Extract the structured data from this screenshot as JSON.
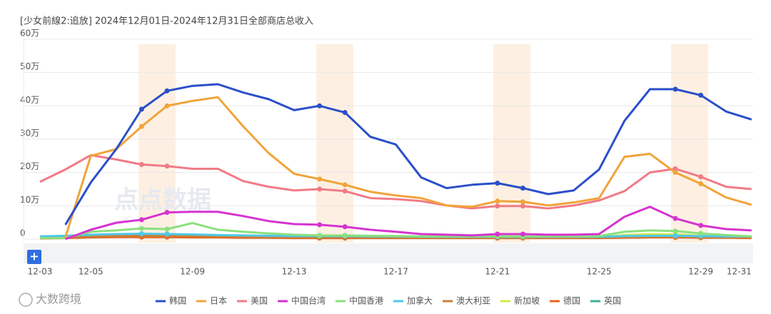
{
  "chart_data": {
    "type": "line",
    "title": "[少女前線2:追放] 2024年12月01日-2024年12月31日全部商店总收入",
    "watermark": "点点数据",
    "brand": "大数跨境",
    "button": "+",
    "categories": [
      "12-03",
      null,
      "12-05",
      null,
      null,
      null,
      "12-09",
      null,
      null,
      null,
      "12-13",
      null,
      null,
      null,
      "12-17",
      null,
      null,
      null,
      "12-21",
      null,
      null,
      null,
      "12-25",
      null,
      null,
      null,
      "12-29",
      null,
      "12-31"
    ],
    "ylim": [
      0,
      60
    ],
    "yticks": [
      {
        "value": 0,
        "label": "0"
      },
      {
        "value": 10,
        "label": "10万"
      },
      {
        "value": 20,
        "label": "20万"
      },
      {
        "value": 30,
        "label": "30万"
      },
      {
        "value": 40,
        "label": "40万"
      },
      {
        "value": 50,
        "label": "50万"
      },
      {
        "value": 60,
        "label": "60万"
      }
    ],
    "grid": true,
    "legend": "bottom",
    "series": [
      {
        "name": "韩国",
        "color": "#2b4fc9",
        "values": [
          null,
          4.3,
          17,
          27,
          39,
          44.5,
          46,
          46.5,
          44,
          42,
          38.7,
          40,
          38,
          30.7,
          28.4,
          18.5,
          15.3,
          16.3,
          16.8,
          15.3,
          13.5,
          14.6,
          20.9,
          35.5,
          45,
          45,
          43.2,
          38.3,
          35.9
        ]
      },
      {
        "name": "日本",
        "color": "#f0a43a",
        "values": [
          null,
          0.5,
          25,
          27,
          33.8,
          40,
          41.5,
          42.6,
          33.8,
          25.8,
          19.6,
          18,
          16.3,
          14.2,
          13.1,
          12.3,
          10.1,
          9.7,
          11.4,
          11.2,
          10.1,
          11,
          12.3,
          24.7,
          25.6,
          20,
          16.6,
          12.5,
          10.3
        ]
      },
      {
        "name": "美国",
        "color": "#f07b86",
        "values": [
          17.2,
          20.9,
          25.2,
          23.9,
          22.4,
          21.9,
          21.1,
          21.1,
          17.4,
          15.7,
          14.6,
          15,
          14.4,
          12.3,
          12,
          11.4,
          10.1,
          9.2,
          9.9,
          9.9,
          9.2,
          10.1,
          11.6,
          14.4,
          20,
          21.1,
          18.7,
          15.7,
          15
        ]
      },
      {
        "name": "中国台湾",
        "color": "#d633d0",
        "values": [
          null,
          0,
          2.8,
          4.9,
          5.8,
          8,
          8.2,
          8.2,
          6.9,
          5.4,
          4.5,
          4.3,
          3.7,
          2.8,
          2.2,
          1.5,
          1.3,
          1.1,
          1.5,
          1.5,
          1.3,
          1.3,
          1.5,
          6.7,
          9.7,
          6.2,
          4.1,
          3,
          2.6
        ]
      },
      {
        "name": "中国香港",
        "color": "#8be07d",
        "values": [
          0.3,
          0.3,
          2.2,
          2.6,
          3.2,
          3,
          4.8,
          2.8,
          2.2,
          1.7,
          1.3,
          1.1,
          1.1,
          1,
          0.9,
          0.8,
          0.8,
          0.8,
          0.8,
          0.8,
          0.8,
          0.8,
          0.9,
          2.2,
          2.6,
          2.4,
          1.7,
          1.2,
          0.8
        ]
      },
      {
        "name": "加拿大",
        "color": "#4fc9e8",
        "values": [
          0.8,
          1,
          1.3,
          1.5,
          1.6,
          1.5,
          1.4,
          1.2,
          1.1,
          1,
          0.9,
          0.9,
          0.9,
          0.8,
          0.8,
          0.7,
          0.7,
          0.7,
          0.7,
          0.7,
          0.7,
          0.7,
          0.7,
          0.9,
          1,
          1,
          0.9,
          0.8,
          0.8
        ]
      },
      {
        "name": "澳大利亚",
        "color": "#c8803a",
        "values": [
          0.4,
          0.5,
          0.8,
          0.9,
          1,
          1,
          0.9,
          0.8,
          0.7,
          0.6,
          0.5,
          0.5,
          0.5,
          0.4,
          0.4,
          0.4,
          0.4,
          0.4,
          0.4,
          0.4,
          0.4,
          0.4,
          0.4,
          0.6,
          0.7,
          0.7,
          0.6,
          0.5,
          0.5
        ]
      },
      {
        "name": "新加坡",
        "color": "#d4e84a",
        "values": [
          0.3,
          0.4,
          1.2,
          1.4,
          1.5,
          1.5,
          1.3,
          1.1,
          0.9,
          0.8,
          0.7,
          0.6,
          0.6,
          0.5,
          0.5,
          0.5,
          0.5,
          0.5,
          0.5,
          0.5,
          0.5,
          0.5,
          0.5,
          1.2,
          1.5,
          1.4,
          1,
          0.7,
          0.6
        ]
      },
      {
        "name": "德国",
        "color": "#e8641e",
        "values": [
          0.2,
          0.3,
          0.5,
          0.6,
          0.6,
          0.6,
          0.5,
          0.5,
          0.4,
          0.4,
          0.3,
          0.3,
          0.3,
          0.3,
          0.3,
          0.3,
          0.3,
          0.3,
          0.3,
          0.3,
          0.3,
          0.3,
          0.3,
          0.4,
          0.5,
          0.5,
          0.4,
          0.4,
          0.3
        ]
      },
      {
        "name": "英国",
        "color": "#3bb39a",
        "values": [
          0.5,
          0.6,
          0.7,
          0.8,
          0.8,
          0.7,
          0.7,
          0.6,
          0.6,
          0.5,
          0.5,
          0.5,
          0.4,
          0.4,
          0.4,
          0.4,
          0.4,
          0.4,
          0.4,
          0.4,
          0.4,
          0.4,
          0.4,
          0.5,
          0.6,
          0.6,
          0.5,
          0.5,
          0.5
        ]
      }
    ]
  }
}
